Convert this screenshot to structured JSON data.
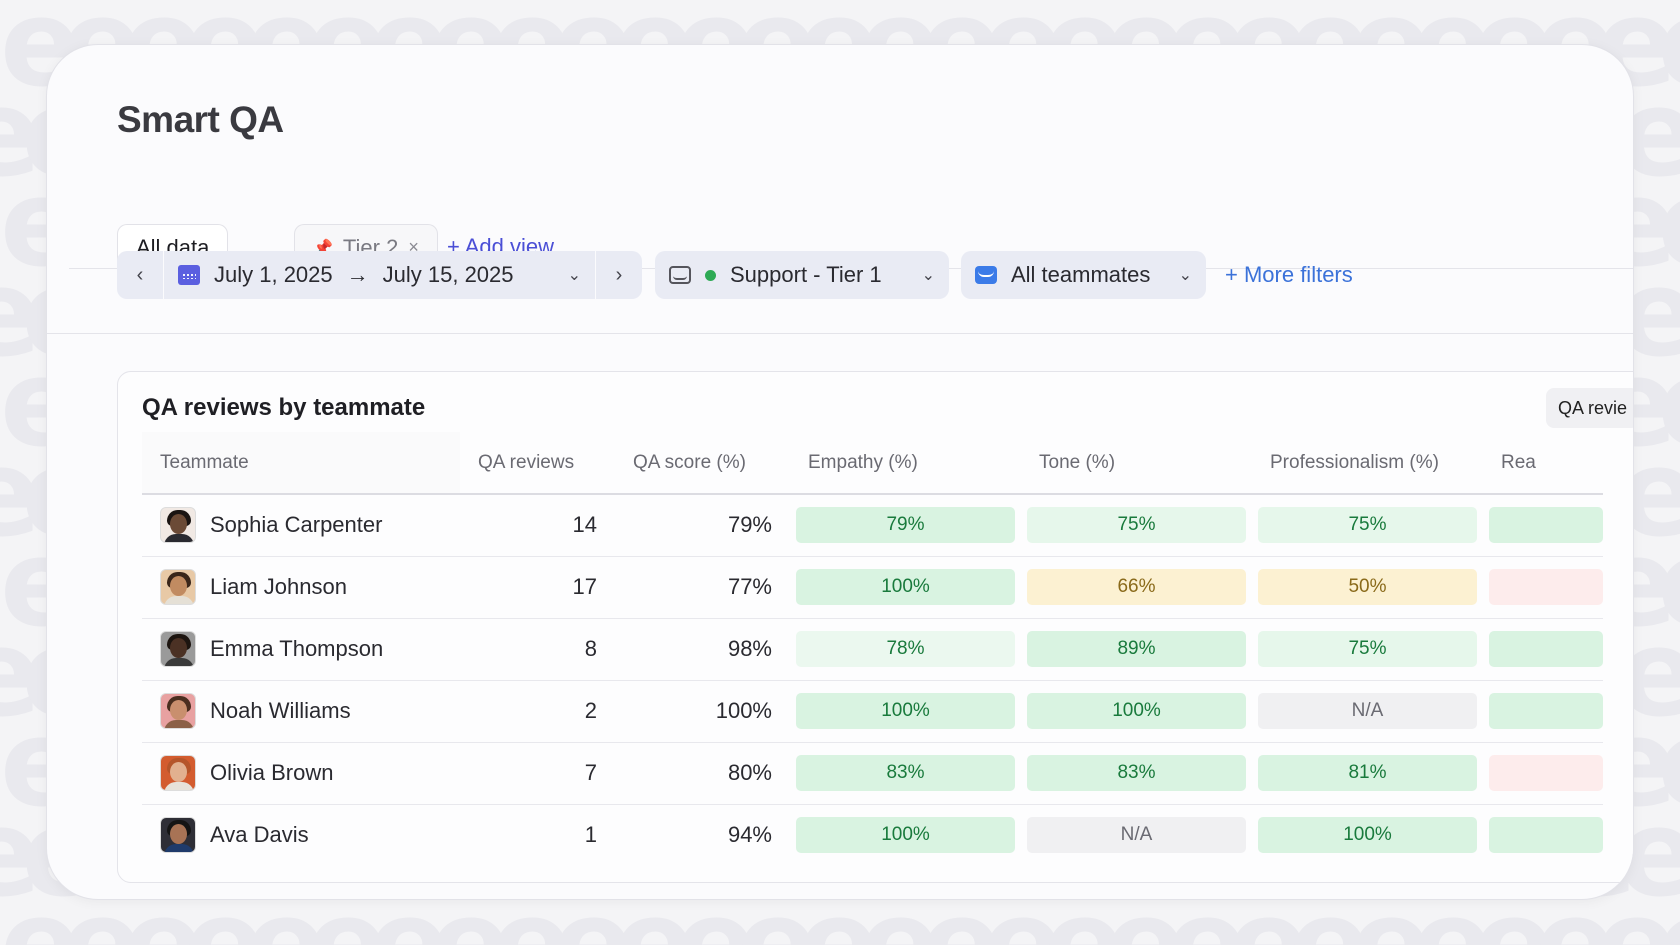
{
  "page": {
    "title": "Smart QA"
  },
  "tabs": [
    {
      "label": "All data"
    },
    {
      "label": "Tier 2",
      "close": "×"
    }
  ],
  "add_view_label": "+ Add view",
  "filters": {
    "date_start": "July 1, 2025",
    "date_arrow": "→",
    "date_end": "July 15, 2025",
    "prev": "‹",
    "next": "›",
    "chevron": "⌄",
    "inbox": "Support - Tier 1",
    "teammates": "All teammates",
    "more_filters": "+ More filters"
  },
  "panel": {
    "title": "QA reviews by teammate",
    "chip": "QA revie"
  },
  "table": {
    "columns": [
      "Teammate",
      "QA reviews",
      "QA score (%)",
      "Empathy (%)",
      "Tone (%)",
      "Professionalism (%)",
      "Rea"
    ],
    "rows": [
      {
        "name": "Sophia Carpenter",
        "reviews": "14",
        "score": "79%",
        "empathy": "79%",
        "tone": "75%",
        "prof": "75%",
        "skin": "#6b4a36",
        "hair": "#1a1412",
        "shirt": "#2a2a30",
        "bg": "#f1e9e4",
        "cells": [
          {
            "color": "#d9f3e1",
            "text": "#197a3c"
          },
          {
            "color": "#e6f7eb",
            "text": "#197a3c"
          },
          {
            "color": "#e6f7eb",
            "text": "#197a3c"
          },
          {
            "color": "#d9f3e1"
          }
        ]
      },
      {
        "name": "Liam Johnson",
        "reviews": "17",
        "score": "77%",
        "empathy": "100%",
        "tone": "66%",
        "prof": "50%",
        "skin": "#c18b61",
        "hair": "#3a261a",
        "shirt": "#e5e0d6",
        "bg": "#e8c9a6",
        "cells": [
          {
            "color": "#d9f3e1",
            "text": "#197a3c"
          },
          {
            "color": "#fcf1d2",
            "text": "#8a6a1a"
          },
          {
            "color": "#fcf1d2",
            "text": "#8a6a1a"
          },
          {
            "color": "#fdecec"
          }
        ]
      },
      {
        "name": "Emma Thompson",
        "reviews": "8",
        "score": "98%",
        "empathy": "78%",
        "tone": "89%",
        "prof": "75%",
        "skin": "#4b3124",
        "hair": "#1d1510",
        "shirt": "#3a3a3a",
        "bg": "#9a9a9a",
        "cells": [
          {
            "color": "#ebf8ef",
            "text": "#197a3c"
          },
          {
            "color": "#d9f3e1",
            "text": "#197a3c"
          },
          {
            "color": "#e6f7eb",
            "text": "#197a3c"
          },
          {
            "color": "#d9f3e1"
          }
        ]
      },
      {
        "name": "Noah Williams",
        "reviews": "2",
        "score": "100%",
        "empathy": "100%",
        "tone": "100%",
        "prof": "N/A",
        "skin": "#c98f6e",
        "hair": "#4a2e1f",
        "shirt": "#8b6047",
        "bg": "#e8a1a1",
        "cells": [
          {
            "color": "#d9f3e1",
            "text": "#197a3c"
          },
          {
            "color": "#d9f3e1",
            "text": "#197a3c"
          },
          {
            "color": "#f0f0f2",
            "text": "#6a6a72"
          },
          {
            "color": "#d9f3e1"
          }
        ]
      },
      {
        "name": "Olivia Brown",
        "reviews": "7",
        "score": "80%",
        "empathy": "83%",
        "tone": "83%",
        "prof": "81%",
        "skin": "#e2b08f",
        "hair": "#b5552a",
        "shirt": "#e7e2d8",
        "bg": "#d35c2f",
        "cells": [
          {
            "color": "#d9f3e1",
            "text": "#197a3c"
          },
          {
            "color": "#d9f3e1",
            "text": "#197a3c"
          },
          {
            "color": "#d9f3e1",
            "text": "#197a3c"
          },
          {
            "color": "#fdecec"
          }
        ]
      },
      {
        "name": "Ava Davis",
        "reviews": "1",
        "score": "94%",
        "empathy": "100%",
        "tone": "N/A",
        "prof": "100%",
        "skin": "#a87355",
        "hair": "#141414",
        "shirt": "#1f3b6b",
        "bg": "#2e2e36",
        "cells": [
          {
            "color": "#d9f3e1",
            "text": "#197a3c"
          },
          {
            "color": "#f0f0f2",
            "text": "#6a6a72"
          },
          {
            "color": "#d9f3e1",
            "text": "#197a3c"
          },
          {
            "color": "#d9f3e1"
          }
        ]
      }
    ]
  }
}
